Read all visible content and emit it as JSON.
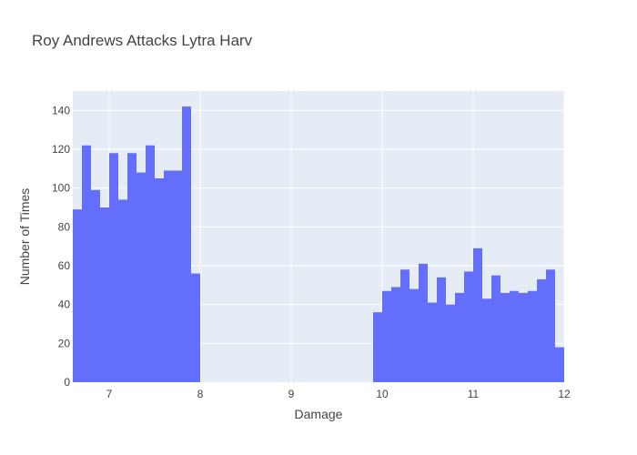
{
  "chart_data": {
    "type": "bar",
    "title": "Roy Andrews Attacks Lytra Harv",
    "xlabel": "Damage",
    "ylabel": "Number of Times",
    "xlim": [
      6.6,
      12.0
    ],
    "ylim": [
      0,
      150
    ],
    "bin_width": 0.1,
    "x_ticks": [
      7,
      8,
      9,
      10,
      11,
      12
    ],
    "x_tick_labels": [
      "7",
      "8",
      "9",
      "10",
      "11",
      "12"
    ],
    "y_ticks": [
      0,
      20,
      40,
      60,
      80,
      100,
      120,
      140
    ],
    "y_tick_labels": [
      "0",
      "20",
      "40",
      "60",
      "80",
      "100",
      "120",
      "140"
    ],
    "bar_color": "#636efa",
    "plot_bg": "#e5ecf6",
    "grid": true,
    "bins": [
      {
        "x0": 6.6,
        "value": 89
      },
      {
        "x0": 6.7,
        "value": 122
      },
      {
        "x0": 6.8,
        "value": 99
      },
      {
        "x0": 6.9,
        "value": 90
      },
      {
        "x0": 7.0,
        "value": 118
      },
      {
        "x0": 7.1,
        "value": 94
      },
      {
        "x0": 7.2,
        "value": 118
      },
      {
        "x0": 7.3,
        "value": 108
      },
      {
        "x0": 7.4,
        "value": 122
      },
      {
        "x0": 7.5,
        "value": 105
      },
      {
        "x0": 7.6,
        "value": 109
      },
      {
        "x0": 7.7,
        "value": 109
      },
      {
        "x0": 7.8,
        "value": 142
      },
      {
        "x0": 7.9,
        "value": 56
      },
      {
        "x0": 9.9,
        "value": 36
      },
      {
        "x0": 10.0,
        "value": 47
      },
      {
        "x0": 10.1,
        "value": 49
      },
      {
        "x0": 10.2,
        "value": 58
      },
      {
        "x0": 10.3,
        "value": 48
      },
      {
        "x0": 10.4,
        "value": 61
      },
      {
        "x0": 10.5,
        "value": 41
      },
      {
        "x0": 10.6,
        "value": 54
      },
      {
        "x0": 10.7,
        "value": 40
      },
      {
        "x0": 10.8,
        "value": 46
      },
      {
        "x0": 10.9,
        "value": 57
      },
      {
        "x0": 11.0,
        "value": 69
      },
      {
        "x0": 11.1,
        "value": 43
      },
      {
        "x0": 11.2,
        "value": 55
      },
      {
        "x0": 11.3,
        "value": 46
      },
      {
        "x0": 11.4,
        "value": 47
      },
      {
        "x0": 11.5,
        "value": 46
      },
      {
        "x0": 11.6,
        "value": 47
      },
      {
        "x0": 11.7,
        "value": 53
      },
      {
        "x0": 11.8,
        "value": 58
      },
      {
        "x0": 11.9,
        "value": 18
      }
    ]
  }
}
